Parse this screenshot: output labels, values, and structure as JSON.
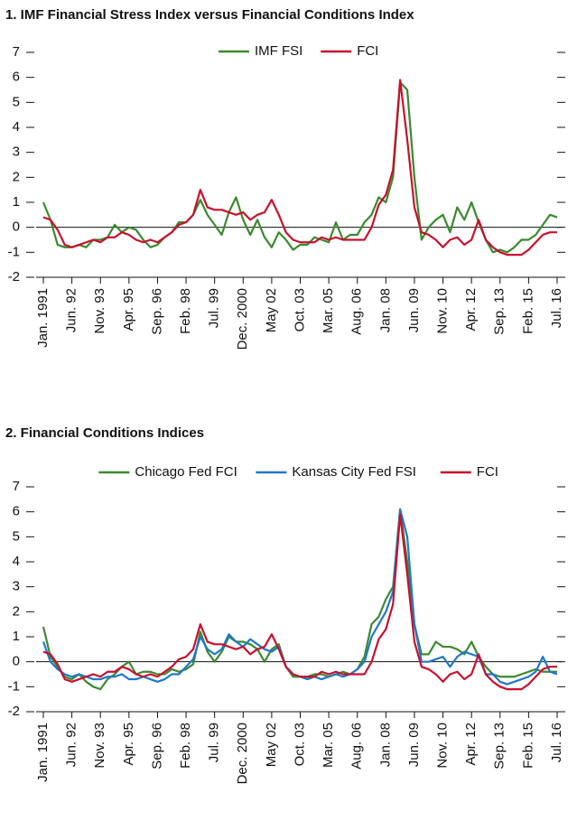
{
  "chart_data": [
    {
      "type": "line",
      "title": "1. IMF Financial Stress Index versus Financial Conditions Index",
      "categories": [
        "Jan. 1991",
        null,
        null,
        null,
        "Jun. 92",
        null,
        null,
        null,
        "Nov. 93",
        null,
        null,
        null,
        "Apr. 95",
        null,
        null,
        null,
        "Sep. 96",
        null,
        null,
        null,
        "Feb. 98",
        null,
        null,
        null,
        "Jul. 99",
        null,
        null,
        null,
        "Dec. 2000",
        null,
        null,
        null,
        "May 02",
        null,
        null,
        null,
        "Oct. 03",
        null,
        null,
        null,
        "Mar. 05",
        null,
        null,
        null,
        "Aug. 06",
        null,
        null,
        null,
        "Jan. 08",
        null,
        null,
        null,
        "Jun. 09",
        null,
        null,
        null,
        "Nov. 10",
        null,
        null,
        null,
        "Apr. 12",
        null,
        null,
        null,
        "Sep. 13",
        null,
        null,
        null,
        "Feb. 15",
        null,
        null,
        null,
        "Jul. 16"
      ],
      "series": [
        {
          "name": "IMF FSI",
          "color": "#3a8a2e",
          "values": [
            1.0,
            0.3,
            -0.7,
            -0.8,
            -0.8,
            -0.7,
            -0.8,
            -0.5,
            -0.5,
            -0.4,
            0.1,
            -0.2,
            0.0,
            -0.1,
            -0.5,
            -0.8,
            -0.7,
            -0.4,
            -0.2,
            0.2,
            0.2,
            0.5,
            1.1,
            0.5,
            0.1,
            -0.3,
            0.6,
            1.2,
            0.3,
            -0.3,
            0.3,
            -0.4,
            -0.8,
            -0.2,
            -0.5,
            -0.9,
            -0.7,
            -0.7,
            -0.4,
            -0.5,
            -0.6,
            0.2,
            -0.5,
            -0.3,
            -0.3,
            0.2,
            0.5,
            1.2,
            1.0,
            2.0,
            5.8,
            5.5,
            2.0,
            -0.5,
            0.0,
            0.3,
            0.5,
            -0.2,
            0.8,
            0.3,
            1.0,
            0.2,
            -0.5,
            -1.0,
            -0.9,
            -1.0,
            -0.8,
            -0.5,
            -0.5,
            -0.3,
            0.1,
            0.5,
            0.4
          ]
        },
        {
          "name": "FCI",
          "color": "#c8102e",
          "values": [
            0.4,
            0.3,
            -0.1,
            -0.7,
            -0.8,
            -0.7,
            -0.6,
            -0.5,
            -0.6,
            -0.4,
            -0.4,
            -0.2,
            -0.3,
            -0.5,
            -0.6,
            -0.5,
            -0.6,
            -0.4,
            -0.2,
            0.1,
            0.2,
            0.5,
            1.5,
            0.8,
            0.7,
            0.7,
            0.6,
            0.5,
            0.6,
            0.3,
            0.5,
            0.6,
            1.1,
            0.5,
            -0.2,
            -0.5,
            -0.6,
            -0.6,
            -0.6,
            -0.4,
            -0.5,
            -0.4,
            -0.5,
            -0.5,
            -0.5,
            -0.5,
            0.0,
            0.9,
            1.3,
            2.3,
            5.9,
            3.5,
            0.8,
            -0.2,
            -0.3,
            -0.5,
            -0.8,
            -0.5,
            -0.4,
            -0.7,
            -0.5,
            0.3,
            -0.5,
            -0.8,
            -1.0,
            -1.1,
            -1.1,
            -1.1,
            -0.9,
            -0.6,
            -0.3,
            -0.2,
            -0.2
          ]
        }
      ],
      "ylim": [
        -2,
        7
      ],
      "yticks": [
        -2,
        -1,
        0,
        1,
        2,
        3,
        4,
        5,
        6,
        7
      ],
      "hline": 0,
      "legend": "top"
    },
    {
      "type": "line",
      "title": "2. Financial Conditions Indices",
      "categories": [
        "Jan. 1991",
        null,
        null,
        null,
        "Jun. 92",
        null,
        null,
        null,
        "Nov. 93",
        null,
        null,
        null,
        "Apr. 95",
        null,
        null,
        null,
        "Sep. 96",
        null,
        null,
        null,
        "Feb. 98",
        null,
        null,
        null,
        "Jul. 99",
        null,
        null,
        null,
        "Dec. 2000",
        null,
        null,
        null,
        "May 02",
        null,
        null,
        null,
        "Oct. 03",
        null,
        null,
        null,
        "Mar. 05",
        null,
        null,
        null,
        "Aug. 06",
        null,
        null,
        null,
        "Jan. 08",
        null,
        null,
        null,
        "Jun. 09",
        null,
        null,
        null,
        "Nov. 10",
        null,
        null,
        null,
        "Apr. 12",
        null,
        null,
        null,
        "Sep. 13",
        null,
        null,
        null,
        "Feb. 15",
        null,
        null,
        null,
        "Jul. 16"
      ],
      "series": [
        {
          "name": "Chicago Fed FCI",
          "color": "#3a8a2e",
          "values": [
            1.4,
            0.2,
            -0.2,
            -0.6,
            -0.7,
            -0.5,
            -0.8,
            -1.0,
            -1.1,
            -0.7,
            -0.5,
            -0.2,
            0.0,
            -0.5,
            -0.4,
            -0.4,
            -0.5,
            -0.5,
            -0.3,
            -0.4,
            -0.3,
            -0.1,
            1.2,
            0.4,
            0.0,
            0.4,
            1.0,
            0.8,
            0.8,
            0.7,
            0.5,
            0.0,
            0.5,
            0.7,
            -0.2,
            -0.6,
            -0.6,
            -0.6,
            -0.5,
            -0.5,
            -0.6,
            -0.5,
            -0.4,
            -0.5,
            -0.3,
            0.2,
            1.5,
            1.8,
            2.5,
            3.0,
            6.1,
            4.0,
            1.5,
            0.3,
            0.3,
            0.8,
            0.6,
            0.6,
            0.5,
            0.3,
            0.8,
            0.2,
            -0.2,
            -0.5,
            -0.6,
            -0.6,
            -0.6,
            -0.5,
            -0.4,
            -0.3,
            -0.4,
            -0.4,
            -0.4
          ]
        },
        {
          "name": "Kansas City Fed FSI",
          "color": "#1f78c8",
          "values": [
            0.8,
            0.0,
            -0.3,
            -0.5,
            -0.6,
            -0.5,
            -0.6,
            -0.7,
            -0.7,
            -0.6,
            -0.6,
            -0.5,
            -0.7,
            -0.7,
            -0.6,
            -0.7,
            -0.8,
            -0.7,
            -0.5,
            -0.5,
            -0.2,
            0.1,
            1.0,
            0.5,
            0.3,
            0.5,
            1.1,
            0.8,
            0.6,
            0.9,
            0.7,
            0.5,
            0.4,
            0.6,
            -0.2,
            -0.5,
            -0.6,
            -0.7,
            -0.6,
            -0.7,
            -0.6,
            -0.5,
            -0.6,
            -0.5,
            -0.3,
            0.0,
            1.0,
            1.5,
            2.0,
            2.8,
            6.1,
            5.0,
            1.5,
            0.0,
            0.0,
            0.1,
            0.2,
            -0.2,
            0.2,
            0.4,
            0.3,
            0.2,
            -0.5,
            -0.5,
            -0.8,
            -0.9,
            -0.8,
            -0.7,
            -0.6,
            -0.4,
            0.2,
            -0.4,
            -0.5
          ]
        },
        {
          "name": "FCI",
          "color": "#c8102e",
          "values": [
            0.4,
            0.3,
            -0.1,
            -0.7,
            -0.8,
            -0.7,
            -0.6,
            -0.5,
            -0.6,
            -0.4,
            -0.4,
            -0.2,
            -0.3,
            -0.5,
            -0.6,
            -0.5,
            -0.6,
            -0.4,
            -0.2,
            0.1,
            0.2,
            0.5,
            1.5,
            0.8,
            0.7,
            0.7,
            0.6,
            0.5,
            0.6,
            0.3,
            0.5,
            0.6,
            1.1,
            0.5,
            -0.2,
            -0.5,
            -0.6,
            -0.6,
            -0.6,
            -0.4,
            -0.5,
            -0.4,
            -0.5,
            -0.5,
            -0.5,
            -0.5,
            0.0,
            0.9,
            1.3,
            2.3,
            5.9,
            3.5,
            0.8,
            -0.2,
            -0.3,
            -0.5,
            -0.8,
            -0.5,
            -0.4,
            -0.7,
            -0.5,
            0.3,
            -0.5,
            -0.8,
            -1.0,
            -1.1,
            -1.1,
            -1.1,
            -0.9,
            -0.6,
            -0.3,
            -0.2,
            -0.2
          ]
        }
      ],
      "ylim": [
        -2,
        7
      ],
      "yticks": [
        -2,
        -1,
        0,
        1,
        2,
        3,
        4,
        5,
        6,
        7
      ],
      "hline": 0,
      "legend": "top"
    }
  ]
}
